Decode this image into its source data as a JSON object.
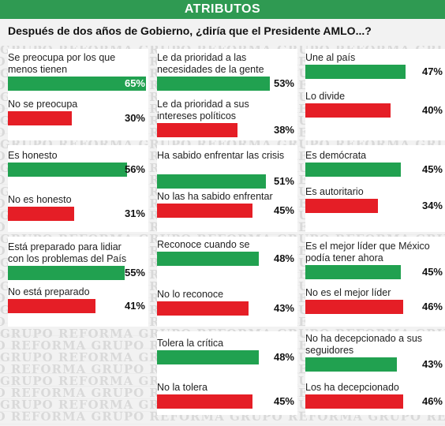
{
  "header": {
    "title": "ATRIBUTOS"
  },
  "question": "Después de dos años de Gobierno, ¿diría que el Presidente AMLO...?",
  "watermark": "GRUPO REFORMA",
  "colors": {
    "header": "#2f9a52",
    "positive": "#21a150",
    "negative": "#e51e26"
  },
  "chart_data": {
    "type": "bar",
    "title": "ATRIBUTOS",
    "subtitle": "Después de dos años de Gobierno, ¿diría que el Presidente AMLO...?",
    "unit": "%",
    "series": [
      {
        "color": "positive",
        "categories": [
          "Se preocupa por los que menos tienen",
          "Es honesto",
          "Está preparado para lidiar con los problemas del País",
          "Le da prioridad a las necesidades de la gente",
          "Ha sabido enfrentar las crisis",
          "Reconoce cuando se equivoca",
          "Tolera la crítica",
          "Une al país",
          "Es demócrata",
          "Es el mejor líder que México podía tener ahora",
          "No ha decepcionado a sus seguidores"
        ],
        "values": [
          65,
          56,
          55,
          53,
          51,
          48,
          48,
          47,
          45,
          45,
          43
        ]
      },
      {
        "color": "negative",
        "categories": [
          "No se preocupa",
          "No es honesto",
          "No está preparado",
          "Le da prioridad a sus intereses políticos",
          "No las ha sabido enfrentar",
          "No lo reconoce",
          "No la tolera",
          "Lo divide",
          "Es autoritario",
          "No es el mejor líder",
          "Los ha decepcionado"
        ],
        "values": [
          30,
          31,
          41,
          38,
          45,
          43,
          45,
          40,
          34,
          46,
          46
        ]
      }
    ],
    "columns": [
      {
        "groups": [
          {
            "items": [
              {
                "label": "Se preocupa por los que menos tienen",
                "value": 65,
                "display": "65%",
                "polarity": "positive"
              },
              {
                "label": "No se preocupa",
                "value": 30,
                "display": "30%",
                "polarity": "negative"
              }
            ]
          },
          {
            "items": [
              {
                "label": "Es honesto",
                "value": 56,
                "display": "56%",
                "polarity": "positive"
              },
              {
                "label": "No es honesto",
                "value": 31,
                "display": "31%",
                "polarity": "negative"
              }
            ]
          },
          {
            "items": [
              {
                "label": "Está preparado para lidiar con los problemas del País",
                "value": 55,
                "display": "55%",
                "polarity": "positive"
              },
              {
                "label": "No está preparado",
                "value": 41,
                "display": "41%",
                "polarity": "negative"
              }
            ]
          }
        ]
      },
      {
        "groups": [
          {
            "items": [
              {
                "label": "Le da prioridad a las necesidades de la gente",
                "value": 53,
                "display": "53%",
                "polarity": "positive"
              },
              {
                "label": "Le da prioridad a sus intereses políticos",
                "value": 38,
                "display": "38%",
                "polarity": "negative"
              }
            ]
          },
          {
            "items": [
              {
                "label": "Ha sabido enfrentar las crisis",
                "value": 51,
                "display": "51%",
                "polarity": "positive"
              },
              {
                "label": "No las ha sabido enfrentar",
                "value": 45,
                "display": "45%",
                "polarity": "negative"
              }
            ]
          },
          {
            "items": [
              {
                "label": "Reconoce cuando se equivoca",
                "value": 48,
                "display": "48%",
                "polarity": "positive"
              },
              {
                "label": "No lo reconoce",
                "value": 43,
                "display": "43%",
                "polarity": "negative"
              }
            ]
          },
          {
            "items": [
              {
                "label": "Tolera la crítica",
                "value": 48,
                "display": "48%",
                "polarity": "positive"
              },
              {
                "label": "No la tolera",
                "value": 45,
                "display": "45%",
                "polarity": "negative"
              }
            ]
          }
        ]
      },
      {
        "groups": [
          {
            "items": [
              {
                "label": "Une al país",
                "value": 47,
                "display": "47%",
                "polarity": "positive"
              },
              {
                "label": "Lo divide",
                "value": 40,
                "display": "40%",
                "polarity": "negative"
              }
            ]
          },
          {
            "items": [
              {
                "label": "Es demócrata",
                "value": 45,
                "display": "45%",
                "polarity": "positive"
              },
              {
                "label": "Es autoritario",
                "value": 34,
                "display": "34%",
                "polarity": "negative"
              }
            ]
          },
          {
            "items": [
              {
                "label": "Es el mejor líder que México podía tener ahora",
                "value": 45,
                "display": "45%",
                "polarity": "positive"
              },
              {
                "label": "No es el mejor líder",
                "value": 46,
                "display": "46%",
                "polarity": "negative"
              }
            ]
          },
          {
            "items": [
              {
                "label": "No ha decepcionado a sus seguidores",
                "value": 43,
                "display": "43%",
                "polarity": "positive"
              },
              {
                "label": "Los ha decepcionado",
                "value": 46,
                "display": "46%",
                "polarity": "negative"
              }
            ]
          }
        ]
      }
    ]
  }
}
